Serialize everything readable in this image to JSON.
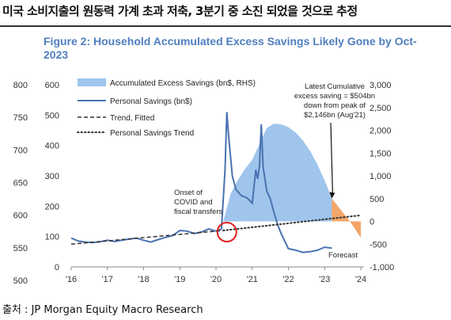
{
  "header": {
    "korean_title": "미국 소비지출의 원동력 가계 초과 저축, 3분기 중 소진 되었을 것으로 추정"
  },
  "source": "출처 : JP Morgan Equity Macro Research",
  "chart_data": {
    "type": "line",
    "title": "Figure 2: Household Accumulated Excess Savings Likely Gone by Oct-2023",
    "x_ticks": [
      "'16",
      "'17",
      "'18",
      "'19",
      "'20",
      "'21",
      "'22",
      "'23",
      "'24"
    ],
    "x_range": [
      2016,
      2024
    ],
    "y_left_ticks": [
      600,
      500,
      400,
      300,
      200,
      100,
      0
    ],
    "y_left_range": [
      0,
      600
    ],
    "y_left_outer_ticks": [
      800,
      750,
      700,
      650,
      600,
      550,
      500
    ],
    "y_right_ticks": [
      "3,000",
      "2,500",
      "2,000",
      "1,500",
      "1,000",
      "500",
      "0",
      "-500",
      "-1,000"
    ],
    "y_right_range": [
      -1000,
      3000
    ],
    "legend": [
      {
        "label": "Accumulated Excess Savings (bn$, RHS)",
        "style": "area",
        "color": "#9fc5ec"
      },
      {
        "label": "Personal Savings (bn$)",
        "style": "line",
        "color": "#4a72b0"
      },
      {
        "label": "Trend, Fitted",
        "style": "dash",
        "color": "#333333"
      },
      {
        "label": "Personal Savings Trend",
        "style": "dot",
        "color": "#333333"
      }
    ],
    "annotations": {
      "covid": [
        "Onset of",
        "COVID and",
        "fiscal transfers"
      ],
      "latest": [
        "Latest Cumulative",
        "excess saving = $504bn",
        "down from peak of",
        "$2,146bn (Aug'21)"
      ],
      "forecast": "Forecast"
    },
    "series": [
      {
        "name": "Personal Savings (bn$)",
        "x": [
          2016.0,
          2016.2,
          2016.4,
          2016.6,
          2016.8,
          2017.0,
          2017.2,
          2017.5,
          2017.8,
          2018.0,
          2018.2,
          2018.4,
          2018.6,
          2018.8,
          2019.0,
          2019.2,
          2019.4,
          2019.6,
          2019.8,
          2020.0,
          2020.15,
          2020.25,
          2020.3,
          2020.35,
          2020.45,
          2020.55,
          2020.7,
          2020.85,
          2021.0,
          2021.1,
          2021.15,
          2021.2,
          2021.25,
          2021.3,
          2021.4,
          2021.5,
          2021.6,
          2021.7,
          2021.8,
          2022.0,
          2022.2,
          2022.4,
          2022.6,
          2022.8,
          2023.0,
          2023.2
        ],
        "y": [
          95,
          85,
          82,
          80,
          83,
          88,
          84,
          90,
          95,
          88,
          82,
          90,
          97,
          103,
          120,
          118,
          110,
          115,
          125,
          118,
          125,
          320,
          510,
          430,
          300,
          255,
          235,
          228,
          210,
          320,
          290,
          330,
          470,
          330,
          250,
          225,
          180,
          140,
          110,
          60,
          55,
          48,
          50,
          55,
          65,
          62
        ]
      },
      {
        "name": "Trend, Fitted",
        "x": [
          2016.0,
          2020.2
        ],
        "y": [
          75,
          120
        ]
      },
      {
        "name": "Personal Savings Trend",
        "x": [
          2020.2,
          2024.0
        ],
        "y": [
          120,
          170
        ]
      },
      {
        "name": "Accumulated Excess Savings (bn$, RHS)",
        "x": [
          2020.2,
          2020.4,
          2020.6,
          2020.8,
          2021.0,
          2021.2,
          2021.4,
          2021.6,
          2021.8,
          2022.0,
          2022.2,
          2022.4,
          2022.6,
          2022.8,
          2023.0,
          2023.2,
          2023.45,
          2023.7,
          2023.95,
          2024.0
        ],
        "y": [
          0,
          600,
          900,
          1150,
          1350,
          1700,
          2050,
          2146,
          2130,
          2070,
          1950,
          1780,
          1550,
          1250,
          900,
          504,
          250,
          0,
          -300,
          -350
        ]
      }
    ]
  }
}
